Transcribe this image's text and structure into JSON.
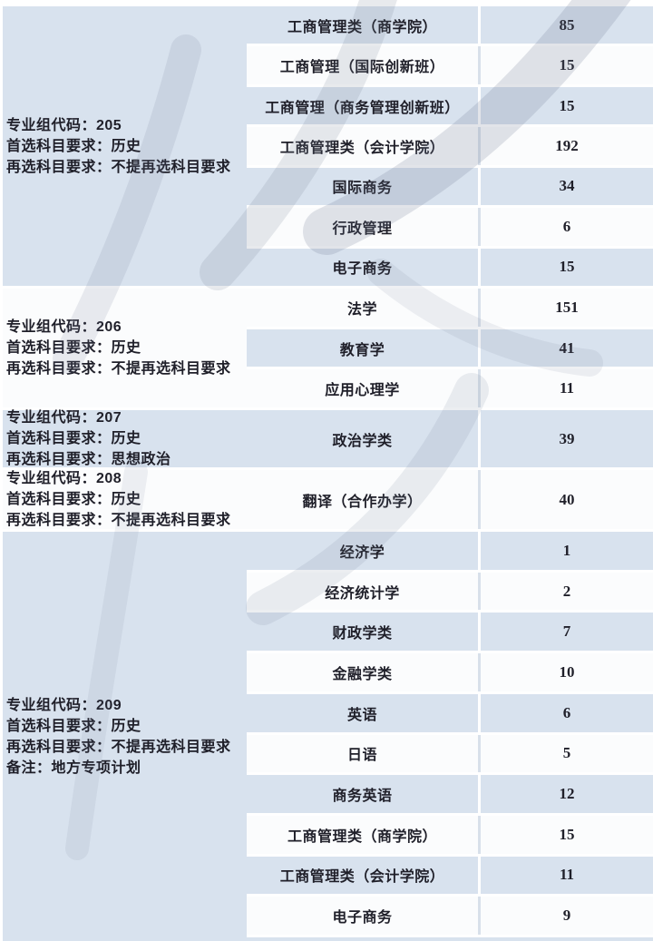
{
  "colors": {
    "stripe_blue": "#d8e2ee",
    "stripe_white": "#fbfcfd",
    "text": "#1f1f29",
    "divider_on_white": "#d8e0ea",
    "watermark": "#6e7a92",
    "page_bg": "#ffffff"
  },
  "table": {
    "groups": [
      {
        "tone": "blue",
        "lines": [
          "专业组代码：205",
          "首选科目要求：历史",
          "再选科目要求：不提再选科目要求"
        ],
        "rows": [
          {
            "major": "工商管理类（商学院）",
            "count": "85",
            "tone": "blue"
          },
          {
            "major": "工商管理（国际创新班）",
            "count": "15",
            "tone": "white"
          },
          {
            "major": "工商管理（商务管理创新班）",
            "count": "15",
            "tone": "blue"
          },
          {
            "major": "工商管理类（会计学院）",
            "count": "192",
            "tone": "white"
          },
          {
            "major": "国际商务",
            "count": "34",
            "tone": "blue"
          },
          {
            "major": "行政管理",
            "count": "6",
            "tone": "white"
          },
          {
            "major": "电子商务",
            "count": "15",
            "tone": "blue"
          }
        ]
      },
      {
        "tone": "white",
        "lines": [
          "专业组代码：206",
          "首选科目要求：历史",
          "再选科目要求：不提再选科目要求"
        ],
        "rows": [
          {
            "major": "法学",
            "count": "151",
            "tone": "white"
          },
          {
            "major": "教育学",
            "count": "41",
            "tone": "blue"
          },
          {
            "major": "应用心理学",
            "count": "11",
            "tone": "white"
          }
        ]
      },
      {
        "tone": "blue",
        "lines": [
          "专业组代码：207",
          "首选科目要求：历史",
          "再选科目要求：思想政治"
        ],
        "rows": [
          {
            "major": "政治学类",
            "count": "39",
            "tone": "blue"
          }
        ]
      },
      {
        "tone": "white",
        "lines": [
          "专业组代码：208",
          "首选科目要求：历史",
          "再选科目要求：不提再选科目要求"
        ],
        "rows": [
          {
            "major": "翻译（合作办学）",
            "count": "40",
            "tone": "white"
          }
        ]
      },
      {
        "tone": "blue",
        "lines": [
          "专业组代码：209",
          "首选科目要求：历史",
          "再选科目要求：不提再选科目要求",
          "备注：地方专项计划"
        ],
        "rows": [
          {
            "major": "经济学",
            "count": "1",
            "tone": "blue"
          },
          {
            "major": "经济统计学",
            "count": "2",
            "tone": "white"
          },
          {
            "major": "财政学类",
            "count": "7",
            "tone": "blue"
          },
          {
            "major": "金融学类",
            "count": "10",
            "tone": "white"
          },
          {
            "major": "英语",
            "count": "6",
            "tone": "blue"
          },
          {
            "major": "日语",
            "count": "5",
            "tone": "white"
          },
          {
            "major": "商务英语",
            "count": "12",
            "tone": "blue"
          },
          {
            "major": "工商管理类（商学院）",
            "count": "15",
            "tone": "white"
          },
          {
            "major": "工商管理类（会计学院）",
            "count": "11",
            "tone": "blue"
          },
          {
            "major": "电子商务",
            "count": "9",
            "tone": "white"
          }
        ]
      }
    ]
  }
}
